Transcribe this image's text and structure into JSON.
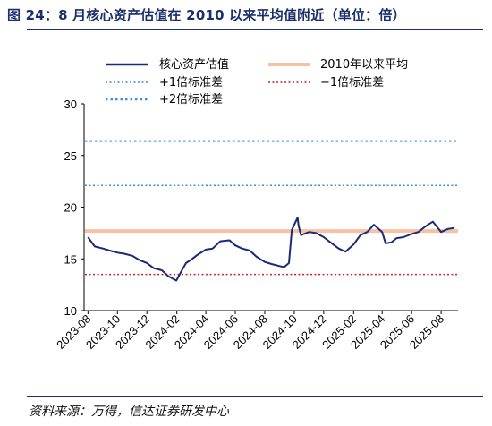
{
  "title": "图 24：8 月核心资产估值在 2010 以来平均值附近（单位：倍）",
  "source": "资料来源：万得，信达证券研发中心",
  "colors": {
    "title": "#1a2f6b",
    "core": "#1b2a78",
    "mean": "#f7c1a3",
    "plus1": "#3d8fd0",
    "minus1": "#c0272d",
    "plus2": "#3d8fd0"
  },
  "chart_data": {
    "type": "line",
    "x_ticks": [
      "2023-08",
      "2023-10",
      "2023-12",
      "2024-02",
      "2024-04",
      "2024-06",
      "2024-08",
      "2024-10",
      "2024-12",
      "2025-02",
      "2025-04",
      "2025-06",
      "2025-08"
    ],
    "ylim": [
      10,
      30
    ],
    "y_ticks": [
      10,
      15,
      20,
      25,
      30
    ],
    "grid": false,
    "legend_position": "top",
    "legend": [
      "核心资产估值",
      "2010年以来平均",
      "+1倍标准差",
      "−1倍标准差",
      "+2倍标准差"
    ],
    "reference_lines": [
      {
        "name": "2010年以来平均",
        "value": 17.7,
        "style": "solid-thick"
      },
      {
        "name": "+1倍标准差",
        "value": 22.1,
        "style": "dotted"
      },
      {
        "name": "−1倍标准差",
        "value": 13.5,
        "style": "dotted"
      },
      {
        "name": "+2倍标准差",
        "value": 26.4,
        "style": "dotted"
      }
    ],
    "series": [
      {
        "name": "核心资产估值",
        "x": [
          "2023-08-01",
          "2023-08-15",
          "2023-09-01",
          "2023-09-15",
          "2023-10-01",
          "2023-10-15",
          "2023-11-01",
          "2023-11-15",
          "2023-12-01",
          "2023-12-15",
          "2024-01-01",
          "2024-01-15",
          "2024-01-31",
          "2024-02-08",
          "2024-02-20",
          "2024-03-01",
          "2024-03-15",
          "2024-04-01",
          "2024-04-15",
          "2024-05-01",
          "2024-05-20",
          "2024-06-01",
          "2024-06-15",
          "2024-07-01",
          "2024-07-15",
          "2024-08-01",
          "2024-08-15",
          "2024-09-01",
          "2024-09-10",
          "2024-09-20",
          "2024-09-26",
          "2024-10-08",
          "2024-10-10",
          "2024-10-15",
          "2024-11-01",
          "2024-11-15",
          "2024-12-01",
          "2024-12-15",
          "2025-01-01",
          "2025-01-15",
          "2025-02-01",
          "2025-02-15",
          "2025-03-01",
          "2025-03-15",
          "2025-04-01",
          "2025-04-08",
          "2025-04-20",
          "2025-05-01",
          "2025-05-15",
          "2025-06-01",
          "2025-06-15",
          "2025-07-01",
          "2025-07-15",
          "2025-08-01",
          "2025-08-15",
          "2025-08-29"
        ],
        "values": [
          17.1,
          16.2,
          16.0,
          15.8,
          15.6,
          15.5,
          15.3,
          14.9,
          14.6,
          14.1,
          13.9,
          13.3,
          12.9,
          13.6,
          14.6,
          14.9,
          15.4,
          15.9,
          16.0,
          16.7,
          16.8,
          16.3,
          16.0,
          15.8,
          15.2,
          14.7,
          14.5,
          14.3,
          14.2,
          14.6,
          17.8,
          19.0,
          18.2,
          17.3,
          17.6,
          17.5,
          17.1,
          16.6,
          16.0,
          15.7,
          16.4,
          17.3,
          17.6,
          18.3,
          17.6,
          16.5,
          16.6,
          17.0,
          17.1,
          17.4,
          17.6,
          18.2,
          18.6,
          17.6,
          17.9,
          18.0
        ]
      }
    ]
  }
}
